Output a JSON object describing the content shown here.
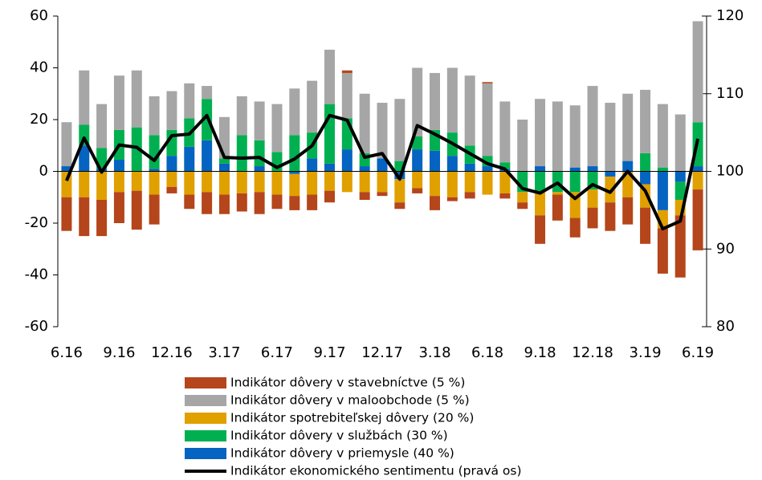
{
  "chart_data": {
    "type": "bar",
    "categories": [
      "6.16",
      null,
      null,
      "9.16",
      null,
      null,
      "12.16",
      null,
      null,
      "3.17",
      null,
      null,
      "6.17",
      null,
      null,
      "9.17",
      null,
      null,
      "12.17",
      null,
      null,
      "3.18",
      null,
      null,
      "6.18",
      null,
      null,
      "9.18",
      null,
      null,
      "12.18",
      null,
      null,
      "3.19",
      null,
      null,
      "6.19"
    ],
    "stacked": true,
    "series": [
      {
        "name": "Indikátor dôvery v priemysle (40 %)",
        "color": "#0563c1",
        "values": [
          2,
          10,
          1,
          4.5,
          0,
          1,
          6,
          9.5,
          12,
          3,
          0,
          2,
          0,
          -1,
          5,
          3,
          8.5,
          2,
          5,
          -3,
          8.5,
          8,
          6,
          3,
          2,
          1,
          0,
          2,
          0,
          1.5,
          2,
          -2,
          4,
          -5,
          -15,
          -4,
          2
        ]
      },
      {
        "name": "Indikátor dôvery v službách (30 %)",
        "color": "#00b050",
        "values": [
          0,
          8,
          8,
          11.5,
          17,
          13,
          10,
          11,
          16,
          2,
          14,
          10,
          7.5,
          14,
          10,
          23,
          12,
          5,
          0,
          4,
          5,
          8,
          9,
          7,
          4,
          2.5,
          -8,
          -8,
          -8,
          -8,
          -7,
          0,
          0,
          7,
          1.5,
          -7,
          17
        ]
      },
      {
        "name": "Indikátor spotrebiteľskej dôvery (20 %)",
        "color": "#e0a000",
        "values": [
          -10,
          -10,
          -11,
          -8,
          -7.5,
          -9,
          -6,
          -9,
          -8,
          -9,
          -8.5,
          -8,
          -9,
          -8.5,
          -9,
          -7.5,
          -8,
          -8,
          -8,
          -9,
          -6.5,
          -9.5,
          -10,
          -8,
          -9,
          -8.5,
          -4,
          -9,
          -1,
          -10,
          -7,
          -10,
          -10,
          -9,
          -7,
          -6,
          -7
        ]
      },
      {
        "name": "Indikátor dôvery v maloobchode (5 %)",
        "color": "#a6a6a6",
        "values": [
          17,
          21,
          17,
          21,
          22,
          15,
          15,
          13.5,
          5,
          16,
          15,
          15,
          18.5,
          18,
          20,
          21,
          17.5,
          23,
          21.5,
          24,
          26.5,
          22,
          25,
          27,
          28,
          23.5,
          20,
          26,
          27,
          24,
          31,
          26.5,
          26,
          24.5,
          24.5,
          22,
          39
        ]
      },
      {
        "name": "Indikátor dôvery v stavebníctve (5 %)",
        "color": "#b5451b",
        "values": [
          -13,
          -15,
          -14,
          -12,
          -15,
          -11.5,
          -2.5,
          -5.5,
          -8.5,
          -7.5,
          -7,
          -8.5,
          -5.5,
          -5.5,
          -6,
          -4.5,
          1,
          -3,
          -1.5,
          -2.5,
          -2,
          -5.5,
          -1.5,
          -2.5,
          0.5,
          -2,
          -2.5,
          -11,
          -10,
          -7.5,
          -8,
          -11,
          -10.5,
          -14,
          -17.5,
          -24,
          -23.5
        ]
      },
      {
        "name": "Indikátor ekonomického sentimentu (pravá os)",
        "type": "line",
        "axis": "y2",
        "color": "#000000",
        "values": [
          98.8,
          104.3,
          99.9,
          103.4,
          103.1,
          101.4,
          104.6,
          104.8,
          107.2,
          101.8,
          101.7,
          101.8,
          100.5,
          101.6,
          103.3,
          107.2,
          106.6,
          101.8,
          102.3,
          99.0,
          105.9,
          104.8,
          103.6,
          102.3,
          101.0,
          100.3,
          97.8,
          97.2,
          98.5,
          96.5,
          98.3,
          97.3,
          100.0,
          97.5,
          92.6,
          93.6,
          104.2
        ]
      }
    ],
    "ylim": [
      -60,
      60
    ],
    "yticks": [
      -60,
      -40,
      -20,
      0,
      20,
      40,
      60
    ],
    "y2lim": [
      80,
      120
    ],
    "y2ticks": [
      80,
      90,
      100,
      110,
      120
    ]
  }
}
